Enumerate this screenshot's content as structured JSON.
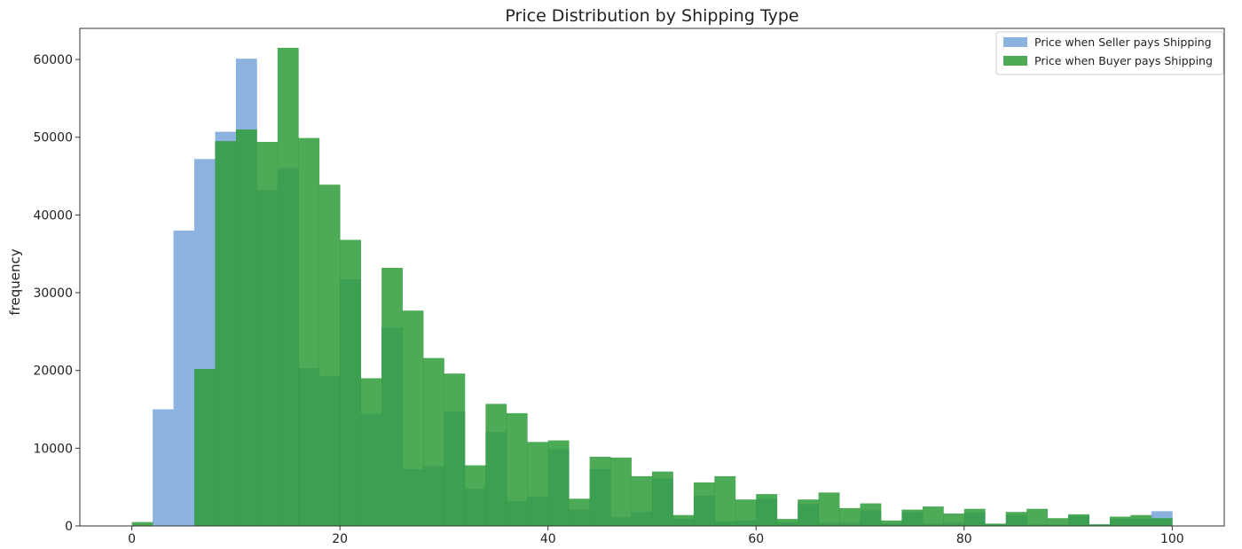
{
  "chart_data": {
    "type": "bar",
    "title": "Price Distribution by Shipping Type",
    "xlabel": "",
    "ylabel": "frequency",
    "xlim": [
      -5,
      105
    ],
    "ylim": [
      0,
      64000
    ],
    "x_ticks": [
      0,
      20,
      40,
      60,
      80,
      100
    ],
    "y_ticks": [
      0,
      10000,
      20000,
      30000,
      40000,
      50000,
      60000
    ],
    "bin_width": 2,
    "x": [
      0,
      2,
      4,
      6,
      8,
      10,
      12,
      14,
      16,
      18,
      20,
      22,
      24,
      26,
      28,
      30,
      32,
      34,
      36,
      38,
      40,
      42,
      44,
      46,
      48,
      50,
      52,
      54,
      56,
      58,
      60,
      62,
      64,
      66,
      68,
      70,
      72,
      74,
      76,
      78,
      80,
      82,
      84,
      86,
      88,
      90,
      92,
      94,
      96,
      98
    ],
    "grid": false,
    "legend_position": "top-right",
    "series": [
      {
        "name": "Price when Seller pays Shipping",
        "color": "#8cb3e0",
        "values": [
          0,
          15000,
          38000,
          47200,
          50700,
          60100,
          43200,
          46000,
          20300,
          19300,
          31700,
          14400,
          25500,
          7300,
          7700,
          14700,
          4800,
          12100,
          3200,
          3800,
          9900,
          2100,
          7300,
          1100,
          1800,
          6100,
          900,
          3900,
          600,
          700,
          3500,
          500,
          2800,
          400,
          400,
          2000,
          300,
          1800,
          300,
          400,
          1700,
          200,
          1400,
          200,
          200,
          1300,
          200,
          900,
          900,
          1900
        ]
      },
      {
        "name": "Price when Buyer pays Shipping",
        "color": "#2e9b38",
        "values": [
          500,
          0,
          0,
          20200,
          49500,
          51000,
          49400,
          61500,
          49900,
          43900,
          36800,
          19000,
          33200,
          27700,
          21600,
          19600,
          7800,
          15700,
          14500,
          10800,
          11000,
          3500,
          8900,
          8800,
          6400,
          7000,
          1400,
          5600,
          6400,
          3400,
          4100,
          900,
          3400,
          4300,
          2300,
          2900,
          700,
          2100,
          2500,
          1600,
          2200,
          300,
          1800,
          2200,
          1000,
          1500,
          200,
          1200,
          1400,
          1000
        ]
      }
    ]
  }
}
